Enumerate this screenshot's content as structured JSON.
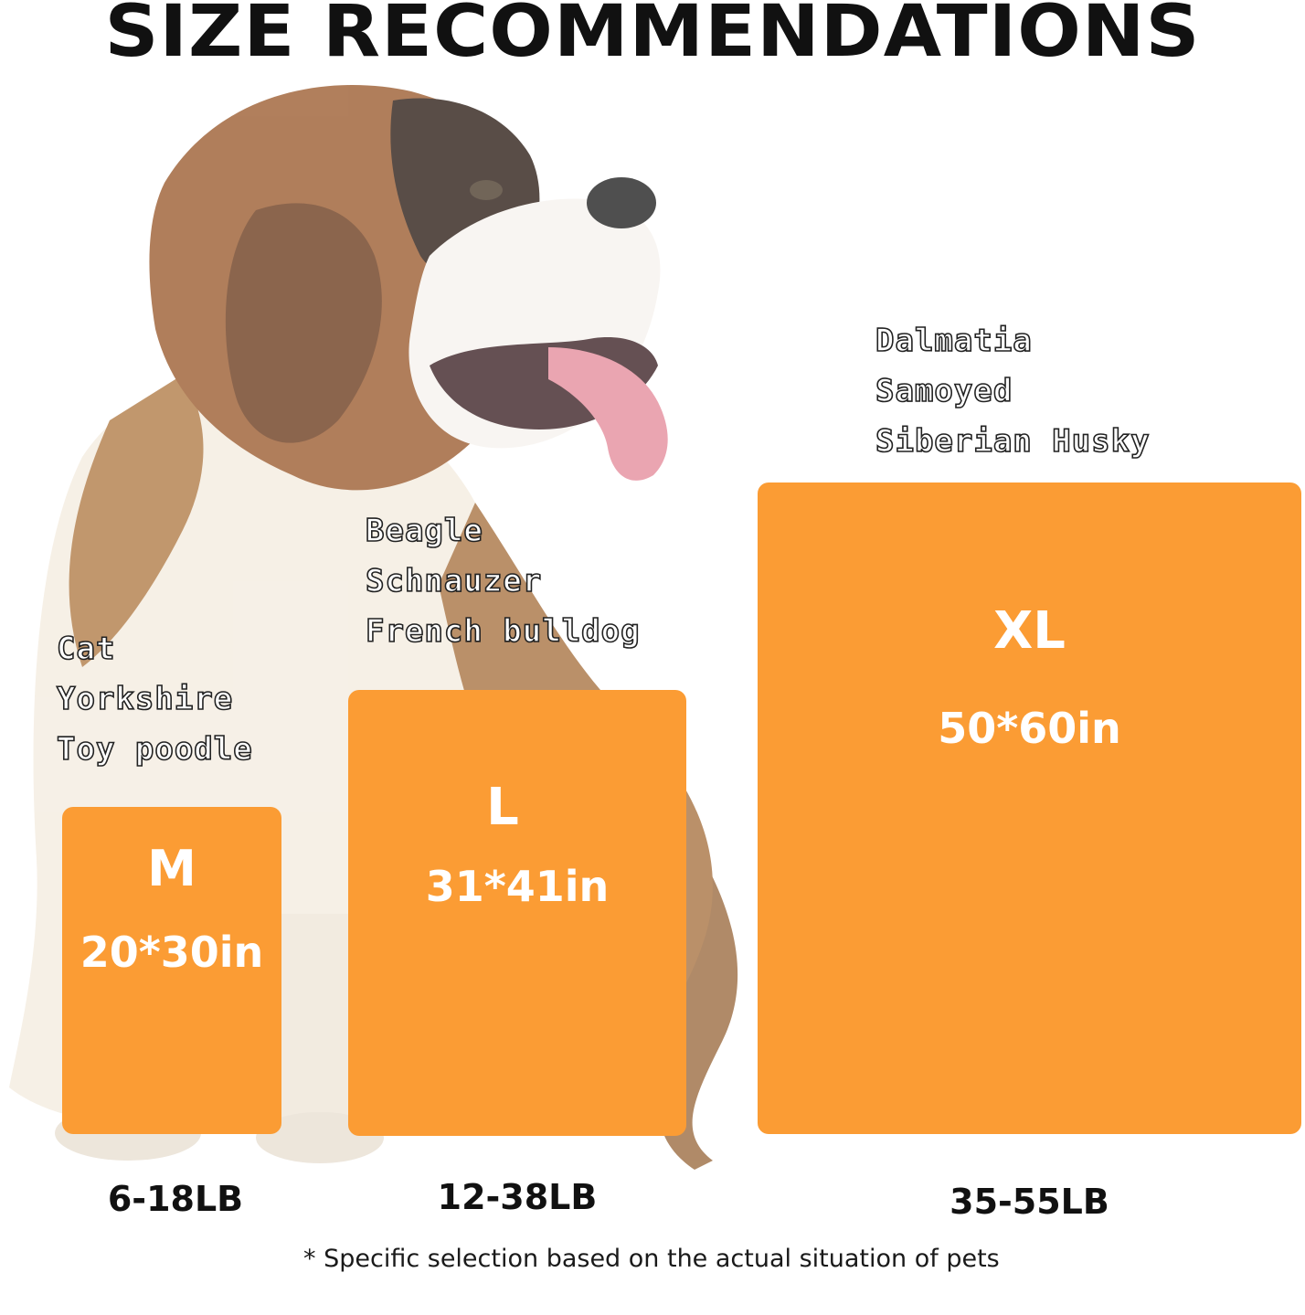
{
  "title": "SIZE RECOMMENDATIONS",
  "colors": {
    "card": "#fb9c34",
    "card_text": "#ffffff",
    "heading": "#111111"
  },
  "illustration": "st-bernard-dog-photo",
  "sizes": [
    {
      "label": "M",
      "dimensions": "20*30in",
      "weight": "6-18LB",
      "breeds": [
        "Cat",
        "Yorkshire",
        "Toy poodle"
      ]
    },
    {
      "label": "L",
      "dimensions": "31*41in",
      "weight": "12-38LB",
      "breeds": [
        "Beagle",
        "Schnauzer",
        "French bulldog"
      ]
    },
    {
      "label": "XL",
      "dimensions": "50*60in",
      "weight": "35-55LB",
      "breeds": [
        "Dalmatia",
        "Samoyed",
        "Siberian Husky"
      ]
    }
  ],
  "footnote": "* Specific selection based on the actual situation of pets"
}
